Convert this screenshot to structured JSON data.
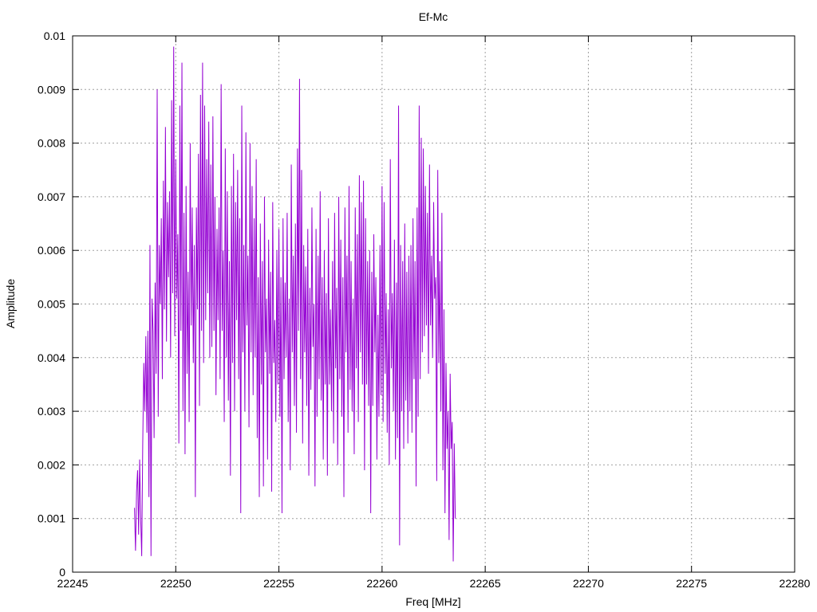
{
  "chart_data": {
    "type": "line",
    "title": "Ef-Mc",
    "xlabel": "Freq [MHz]",
    "ylabel": "Amplitude",
    "xlim": [
      22245,
      22280
    ],
    "ylim": [
      0,
      0.01
    ],
    "xticks": [
      22245,
      22250,
      22255,
      22260,
      22265,
      22270,
      22275,
      22280
    ],
    "yticks": [
      0,
      0.001,
      0.002,
      0.003,
      0.004,
      0.005,
      0.006,
      0.007,
      0.008,
      0.009,
      0.01
    ],
    "xtick_labels": [
      "22245",
      "22250",
      "22255",
      "22260",
      "22265",
      "22270",
      "22275",
      "22280"
    ],
    "ytick_labels": [
      "0",
      "0.001",
      "0.002",
      "0.003",
      "0.004",
      "0.005",
      "0.006",
      "0.007",
      "0.008",
      "0.009",
      "0.01"
    ],
    "grid": true,
    "series": [
      {
        "color": "#9400d3",
        "x_start": 22248.0,
        "x_step": 0.05,
        "values": [
          0.0012,
          0.0004,
          0.0015,
          0.0019,
          0.0007,
          0.0021,
          0.001,
          0.0003,
          0.0024,
          0.0039,
          0.003,
          0.0044,
          0.0026,
          0.0045,
          0.0014,
          0.0061,
          0.0003,
          0.0051,
          0.0045,
          0.0025,
          0.0054,
          0.0037,
          0.009,
          0.0029,
          0.0061,
          0.005,
          0.0066,
          0.0036,
          0.0073,
          0.0049,
          0.0083,
          0.0043,
          0.0069,
          0.0055,
          0.0071,
          0.004,
          0.0088,
          0.0052,
          0.0098,
          0.0044,
          0.0077,
          0.0051,
          0.0063,
          0.0024,
          0.0087,
          0.0045,
          0.0095,
          0.003,
          0.0067,
          0.0022,
          0.0072,
          0.0037,
          0.0056,
          0.0028,
          0.008,
          0.0046,
          0.0068,
          0.0039,
          0.0061,
          0.0014,
          0.0068,
          0.0049,
          0.0078,
          0.0031,
          0.0089,
          0.0045,
          0.0095,
          0.0039,
          0.0087,
          0.0047,
          0.0077,
          0.0052,
          0.0084,
          0.004,
          0.0076,
          0.0042,
          0.0085,
          0.0045,
          0.007,
          0.0033,
          0.0064,
          0.0047,
          0.0068,
          0.0036,
          0.0091,
          0.0045,
          0.006,
          0.0028,
          0.0079,
          0.004,
          0.0071,
          0.0032,
          0.0058,
          0.0018,
          0.0072,
          0.0039,
          0.0078,
          0.003,
          0.0069,
          0.0047,
          0.0075,
          0.0036,
          0.0066,
          0.0011,
          0.0087,
          0.0041,
          0.0061,
          0.003,
          0.0082,
          0.0046,
          0.0059,
          0.0027,
          0.008,
          0.0041,
          0.0072,
          0.0033,
          0.0066,
          0.004,
          0.0077,
          0.0025,
          0.0055,
          0.0014,
          0.0065,
          0.0035,
          0.0058,
          0.0016,
          0.007,
          0.0041,
          0.0051,
          0.0021,
          0.0062,
          0.0037,
          0.0056,
          0.0015,
          0.0069,
          0.0039,
          0.0047,
          0.0028,
          0.006,
          0.0035,
          0.0064,
          0.0029,
          0.0055,
          0.0011,
          0.0066,
          0.0036,
          0.0054,
          0.004,
          0.0067,
          0.0028,
          0.0051,
          0.0019,
          0.0076,
          0.0041,
          0.0059,
          0.0031,
          0.0065,
          0.0026,
          0.0079,
          0.0045,
          0.0092,
          0.0036,
          0.0075,
          0.0024,
          0.0061,
          0.0041,
          0.0057,
          0.0031,
          0.0064,
          0.0018,
          0.0053,
          0.0034,
          0.0068,
          0.0042,
          0.005,
          0.0016,
          0.0064,
          0.0029,
          0.0059,
          0.0036,
          0.0071,
          0.0032,
          0.0055,
          0.0021,
          0.006,
          0.0035,
          0.0052,
          0.0018,
          0.0066,
          0.0035,
          0.0049,
          0.003,
          0.0058,
          0.0024,
          0.0067,
          0.0038,
          0.0053,
          0.002,
          0.007,
          0.0036,
          0.0062,
          0.0029,
          0.0055,
          0.0014,
          0.0068,
          0.0041,
          0.0059,
          0.0026,
          0.0072,
          0.0034,
          0.0058,
          0.003,
          0.0051,
          0.0022,
          0.0068,
          0.0038,
          0.0063,
          0.0028,
          0.0074,
          0.0041,
          0.0069,
          0.0035,
          0.0073,
          0.0019,
          0.0066,
          0.0035,
          0.0058,
          0.0031,
          0.006,
          0.0011,
          0.0056,
          0.0031,
          0.0063,
          0.0041,
          0.0055,
          0.0021,
          0.0048,
          0.0029,
          0.0061,
          0.0033,
          0.0072,
          0.0028,
          0.0069,
          0.0037,
          0.0052,
          0.0026,
          0.0049,
          0.002,
          0.0077,
          0.0038,
          0.0052,
          0.003,
          0.0062,
          0.0021,
          0.0054,
          0.0025,
          0.0087,
          0.0005,
          0.0061,
          0.003,
          0.0058,
          0.0023,
          0.0065,
          0.0032,
          0.0056,
          0.0024,
          0.0059,
          0.003,
          0.0061,
          0.0026,
          0.0066,
          0.0036,
          0.0058,
          0.0016,
          0.0068,
          0.0029,
          0.0087,
          0.0036,
          0.0081,
          0.0041,
          0.0079,
          0.0044,
          0.0072,
          0.0046,
          0.0067,
          0.0037,
          0.0076,
          0.0046,
          0.0059,
          0.004,
          0.0069,
          0.0051,
          0.0055,
          0.0017,
          0.0075,
          0.0039,
          0.0058,
          0.003,
          0.0067,
          0.0019,
          0.0049,
          0.0011,
          0.0039,
          0.0023,
          0.003,
          0.0006,
          0.0037,
          0.0023,
          0.0028,
          0.0002,
          0.0024,
          0.001
        ]
      }
    ]
  }
}
